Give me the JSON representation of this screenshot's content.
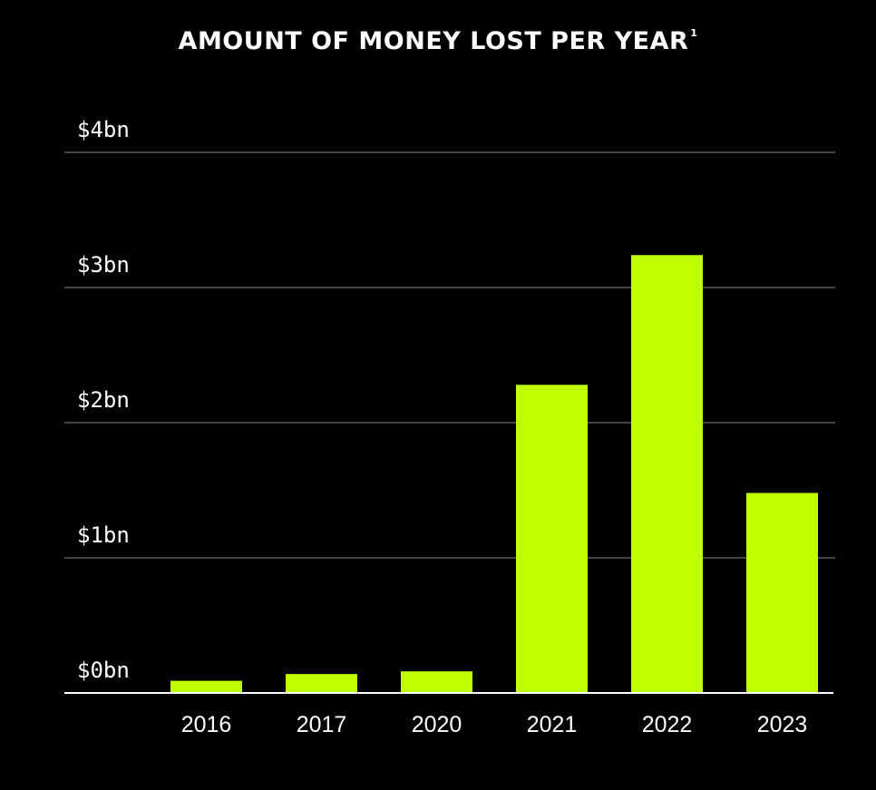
{
  "title": "AMOUNT OF MONEY LOST PER YEAR",
  "title_footnote": "1",
  "colors": {
    "background": "#000000",
    "bar": "#bfff00",
    "grid": "#8a8a8a",
    "text": "#ffffff"
  },
  "chart_data": {
    "type": "bar",
    "categories": [
      "2016",
      "2017",
      "2020",
      "2021",
      "2022",
      "2023"
    ],
    "values": [
      0.09,
      0.14,
      0.16,
      2.28,
      3.24,
      1.48
    ],
    "ylim": [
      0,
      4
    ],
    "yticks": [
      0,
      1,
      2,
      3,
      4
    ],
    "ytick_labels": [
      "$0bn",
      "$1bn",
      "$2bn",
      "$3bn",
      "$4bn"
    ],
    "grid": true,
    "legend": "none"
  }
}
